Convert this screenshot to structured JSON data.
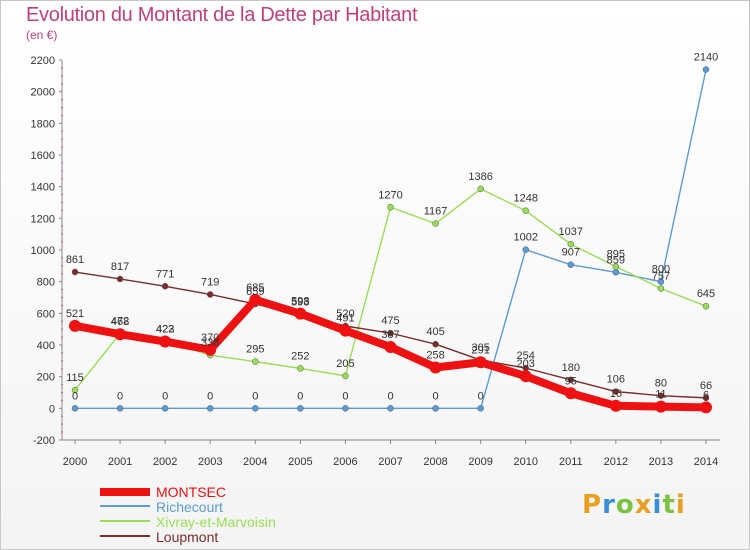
{
  "title": "Evolution du Montant de la Dette par Habitant",
  "unit_label": "(en €)",
  "logo_text": "Proxiti",
  "colors": {
    "title": "#c0407a",
    "montsec": "#ee1111",
    "richecourt": "#5b9bd5",
    "xivray": "#99dd55",
    "loupmont": "#7a2b2b"
  },
  "chart_data": {
    "type": "line",
    "x": [
      2000,
      2001,
      2002,
      2003,
      2004,
      2005,
      2006,
      2007,
      2008,
      2009,
      2010,
      2011,
      2012,
      2013,
      2014
    ],
    "ylim": [
      -200,
      2200
    ],
    "yticks": [
      -200,
      0,
      200,
      400,
      600,
      800,
      1000,
      1200,
      1400,
      1600,
      1800,
      2000,
      2200
    ],
    "grid": false,
    "legend_position": "bottom-left",
    "series": [
      {
        "name": "MONTSEC",
        "color": "#ee1111",
        "values": [
          521,
          468,
          422,
          370,
          685,
          598,
          491,
          387,
          258,
          291,
          203,
          95,
          16,
          11,
          6
        ]
      },
      {
        "name": "Richecourt",
        "color": "#5b9bd5",
        "values": [
          0,
          0,
          0,
          0,
          0,
          0,
          0,
          0,
          0,
          0,
          1002,
          907,
          859,
          800,
          2140
        ]
      },
      {
        "name": "Xivray-et-Marvoisin",
        "color": "#99dd55",
        "values": [
          115,
          472,
          423,
          336,
          295,
          252,
          205,
          1270,
          1167,
          1386,
          1248,
          1037,
          895,
          757,
          645
        ]
      },
      {
        "name": "Loupmont",
        "color": "#7a2b2b",
        "values": [
          861,
          817,
          771,
          719,
          659,
          593,
          520,
          475,
          405,
          305,
          254,
          180,
          106,
          80,
          66
        ]
      }
    ]
  }
}
